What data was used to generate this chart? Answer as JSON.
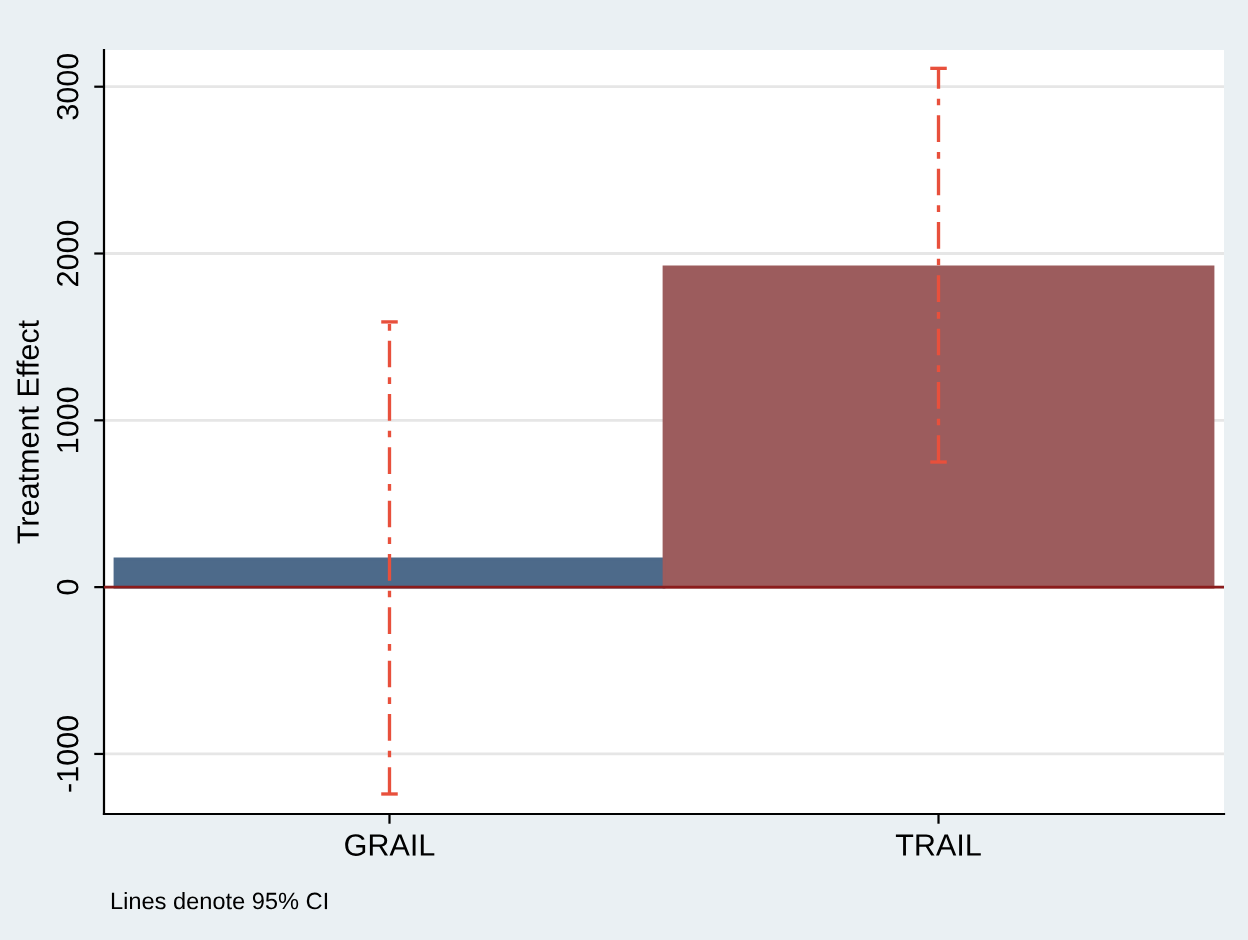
{
  "chart_data": {
    "type": "bar",
    "categories": [
      "GRAIL",
      "TRAIL"
    ],
    "values": [
      170,
      1920
    ],
    "colors": [
      "#4d6a8a",
      "#9c5c5d"
    ],
    "errors": [
      [
        -1240,
        1590
      ],
      [
        750,
        3110
      ]
    ],
    "ylabel": "Treatment Effect",
    "ylim": [
      -1360,
      3220
    ],
    "yticks": [
      -1000,
      0,
      1000,
      2000,
      3000
    ],
    "grid": "y",
    "ref_lines": [
      {
        "axis": "y",
        "value": 0,
        "color": "#8b1c1c"
      }
    ],
    "annotations": [
      "Lines denote 95% CI"
    ]
  }
}
